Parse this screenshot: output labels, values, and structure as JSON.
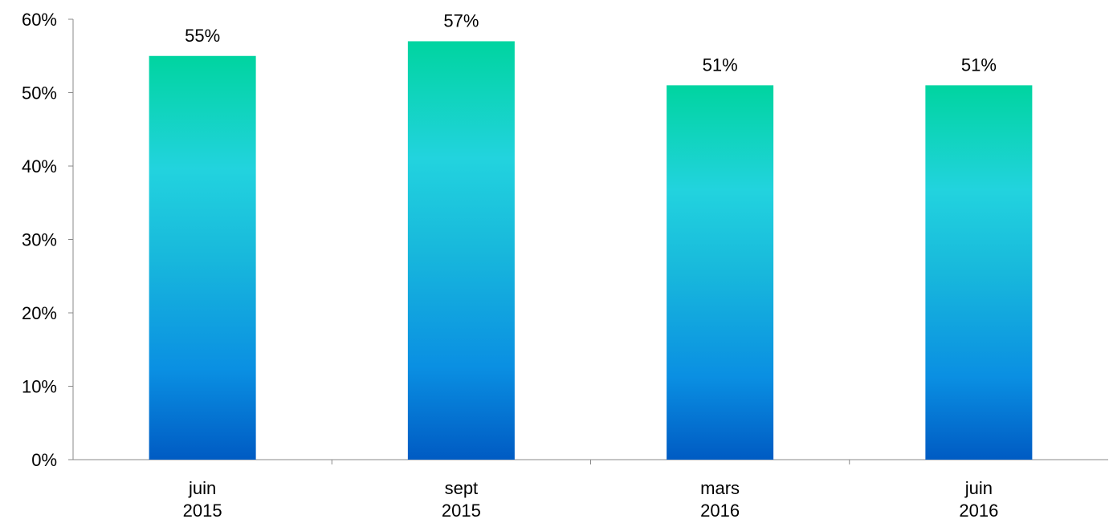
{
  "chart_data": {
    "type": "bar",
    "categories": [
      [
        "juin",
        "2015"
      ],
      [
        "sept",
        "2015"
      ],
      [
        "mars",
        "2016"
      ],
      [
        "juin",
        "2016"
      ]
    ],
    "values": [
      55,
      57,
      51,
      51
    ],
    "data_labels": [
      "55%",
      "57%",
      "51%",
      "51%"
    ],
    "y_ticks": [
      "0%",
      "10%",
      "20%",
      "30%",
      "40%",
      "50%",
      "60%"
    ],
    "ylim": [
      0,
      60
    ],
    "y_unit": "%",
    "grid": false,
    "legend": "none",
    "colors": {
      "bar_top": "#00D4A0",
      "bar_mid": "#22D3DE",
      "bar_upper_mid": "#18B8DC",
      "bar_lower_mid": "#0A8FE2",
      "bar_bottom": "#005BC3",
      "axis": "#888888",
      "text": "#000000"
    }
  }
}
